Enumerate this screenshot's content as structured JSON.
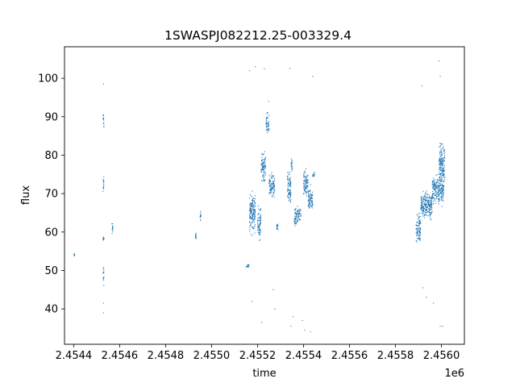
{
  "chart_data": {
    "type": "scatter",
    "title": "1SWASPJ082212.25-003329.4",
    "xlabel": "time",
    "ylabel": "flux",
    "x_offset_label": "1e6",
    "xlim": [
      2454360,
      2456100
    ],
    "ylim": [
      30.8,
      108.2
    ],
    "x_ticks": [
      2454400,
      2454600,
      2454800,
      2455000,
      2455200,
      2455400,
      2455600,
      2455800,
      2456000
    ],
    "x_tick_labels": [
      "2.4544",
      "2.4546",
      "2.4548",
      "2.4550",
      "2.4552",
      "2.4554",
      "2.4556",
      "2.4558",
      "2.4560"
    ],
    "y_ticks": [
      40,
      50,
      60,
      70,
      80,
      90,
      100
    ],
    "y_tick_labels": [
      "40",
      "50",
      "60",
      "70",
      "80",
      "90",
      "100"
    ],
    "grid": false,
    "legend": "none",
    "marker_color": "#1f77b4",
    "series": [
      {
        "clusters": [
          {
            "x": [
              2454402,
              2454403
            ],
            "y": [
              53.5,
              54.5
            ]
          },
          {
            "x": [
              2454528,
              2454532
            ],
            "y": [
              57.5,
              59.0
            ]
          },
          {
            "x": [
              2454528,
              2454532
            ],
            "y": [
              70.0,
              75.0
            ]
          },
          {
            "x": [
              2454528,
              2454532
            ],
            "y": [
              86.0,
              92.0
            ]
          },
          {
            "x": [
              2454528,
              2454532
            ],
            "y": [
              45.0,
              52.0
            ]
          },
          {
            "x": [
              2454566,
              2454570
            ],
            "y": [
              59.0,
              63.0
            ]
          },
          {
            "x": [
              2454930,
              2454934
            ],
            "y": [
              58.0,
              60.0
            ]
          },
          {
            "x": [
              2454950,
              2454953
            ],
            "y": [
              62.5,
              66.0
            ]
          },
          {
            "x": [
              2455150,
              2455165
            ],
            "y": [
              50.5,
              52.0
            ]
          },
          {
            "x": [
              2455165,
              2455190
            ],
            "y": [
              58.0,
              72.0
            ]
          },
          {
            "x": [
              2455200,
              2455215
            ],
            "y": [
              57.0,
              68.0
            ]
          },
          {
            "x": [
              2455215,
              2455235
            ],
            "y": [
              72.0,
              82.0
            ]
          },
          {
            "x": [
              2455237,
              2455250
            ],
            "y": [
              84.0,
              92.0
            ]
          },
          {
            "x": [
              2455250,
              2455275
            ],
            "y": [
              68.0,
              76.0
            ]
          },
          {
            "x": [
              2455283,
              2455290
            ],
            "y": [
              59.0,
              63.0
            ]
          },
          {
            "x": [
              2455330,
              2455345
            ],
            "y": [
              65.0,
              77.0
            ]
          },
          {
            "x": [
              2455345,
              2455352
            ],
            "y": [
              74.0,
              80.0
            ]
          },
          {
            "x": [
              2455360,
              2455375
            ],
            "y": [
              60.0,
              68.0
            ]
          },
          {
            "x": [
              2455375,
              2455390
            ],
            "y": [
              62.0,
              67.0
            ]
          },
          {
            "x": [
              2455400,
              2455420
            ],
            "y": [
              68.0,
              77.0
            ]
          },
          {
            "x": [
              2455420,
              2455440
            ],
            "y": [
              64.0,
              73.0
            ]
          },
          {
            "x": [
              2455440,
              2455450
            ],
            "y": [
              74.0,
              76.0
            ]
          },
          {
            "x": [
              2455890,
              2455910
            ],
            "y": [
              56.0,
              66.0
            ]
          },
          {
            "x": [
              2455910,
              2455960
            ],
            "y": [
              62.0,
              72.0
            ]
          },
          {
            "x": [
              2455960,
              2456010
            ],
            "y": [
              66.0,
              76.0
            ]
          },
          {
            "x": [
              2455990,
              2456015
            ],
            "y": [
              70.0,
              85.0
            ]
          }
        ],
        "outliers": [
          {
            "x": 2454530,
            "y": 98.5
          },
          {
            "x": 2454530,
            "y": 39.0
          },
          {
            "x": 2454530,
            "y": 41.5
          },
          {
            "x": 2455165,
            "y": 102.0
          },
          {
            "x": 2455190,
            "y": 103.0
          },
          {
            "x": 2455230,
            "y": 102.5
          },
          {
            "x": 2455175,
            "y": 42.0
          },
          {
            "x": 2455218,
            "y": 36.5
          },
          {
            "x": 2455248,
            "y": 94.0
          },
          {
            "x": 2455268,
            "y": 45.0
          },
          {
            "x": 2455275,
            "y": 40.0
          },
          {
            "x": 2455340,
            "y": 102.5
          },
          {
            "x": 2455345,
            "y": 35.5
          },
          {
            "x": 2455355,
            "y": 38.0
          },
          {
            "x": 2455395,
            "y": 37.0
          },
          {
            "x": 2455405,
            "y": 34.5
          },
          {
            "x": 2455430,
            "y": 34.0
          },
          {
            "x": 2455440,
            "y": 100.5
          },
          {
            "x": 2455915,
            "y": 98.0
          },
          {
            "x": 2455920,
            "y": 45.5
          },
          {
            "x": 2455935,
            "y": 43.0
          },
          {
            "x": 2455965,
            "y": 41.5
          },
          {
            "x": 2455990,
            "y": 104.5
          },
          {
            "x": 2455995,
            "y": 100.5
          },
          {
            "x": 2455995,
            "y": 35.5
          },
          {
            "x": 2456005,
            "y": 35.5
          }
        ]
      }
    ]
  }
}
